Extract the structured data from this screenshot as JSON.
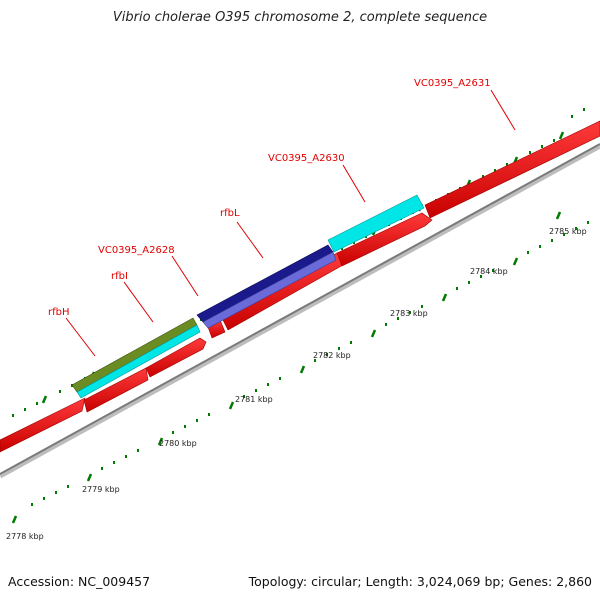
{
  "title": "Vibrio cholerae O395 chromosome 2, complete sequence",
  "footer": {
    "accession": "Accession: NC_009457",
    "topology": "Topology: circular; Length: 3,024,069 bp; Genes: 2,860"
  },
  "gene_labels": [
    "rfbH",
    "rfbI",
    "VC0395_A2628",
    "rfbL",
    "VC0395_A2630",
    "VC0395_A2631"
  ],
  "kbp_labels": [
    "2778 kbp",
    "2779 kbp",
    "2780 kbp",
    "2781 kbp",
    "2782 kbp",
    "2783 kbp",
    "2784 kbp",
    "2785 kbp"
  ],
  "colors": {
    "forward_cds": "#ff0000",
    "gene_cyan": "#00e5e5",
    "gene_olive": "#6b8c23",
    "gene_navy": "#1a1a8c",
    "gene_purple": "#6a6ad8",
    "backbone": "#8c8c8c",
    "ticks": "#007a00",
    "labels": "#e00000"
  }
}
